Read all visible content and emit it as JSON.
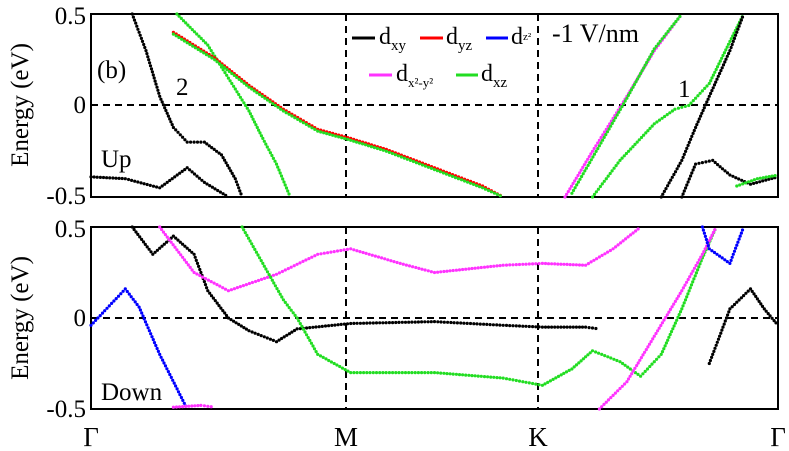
{
  "panel_label": "(b)",
  "field_label": "-1 V/nm",
  "colors": {
    "dxy": "#000000",
    "dyz": "#ff0000",
    "dz2": "#0000ff",
    "dx2y2": "#ff33ff",
    "dxz": "#22dd22",
    "zero_line": "#000000"
  },
  "legend": [
    {
      "key": "dxy",
      "base": "d",
      "sub": "xy"
    },
    {
      "key": "dyz",
      "base": "d",
      "sub": "yz"
    },
    {
      "key": "dz2",
      "base": "d",
      "sub": "z²"
    },
    {
      "key": "dx2y2",
      "base": "d",
      "sub": "x²-y²"
    },
    {
      "key": "dxz",
      "base": "d",
      "sub": "xz"
    }
  ],
  "chart_data": [
    {
      "type": "scatter",
      "panel": "Up",
      "ylabel": "Energy (eV)",
      "ylim": [
        -0.5,
        0.5
      ],
      "yticks": [
        "0.5",
        "0",
        "-0.5"
      ],
      "xlim": [
        0,
        1
      ],
      "kpoints": [
        "Γ",
        "M",
        "K",
        "Γ"
      ],
      "kpoint_positions": [
        0,
        0.378,
        0.657,
        1
      ],
      "annotations": [
        {
          "text": "2",
          "x": 0.14,
          "y": 0.08
        },
        {
          "text": "1",
          "x": 0.865,
          "y": 0.07
        }
      ],
      "series": [
        {
          "color": "dxy",
          "points": [
            [
              0.0,
              -0.39
            ],
            [
              0.05,
              -0.4
            ],
            [
              0.1,
              -0.45
            ],
            [
              0.14,
              -0.34
            ],
            [
              0.165,
              -0.42
            ],
            [
              0.2,
              -0.5
            ]
          ]
        },
        {
          "color": "dxz",
          "points": [
            [
              0.125,
              0.5
            ],
            [
              0.17,
              0.33
            ],
            [
              0.205,
              0.12
            ],
            [
              0.23,
              -0.03
            ],
            [
              0.25,
              -0.18
            ],
            [
              0.27,
              -0.32
            ],
            [
              0.29,
              -0.5
            ]
          ]
        },
        {
          "color": "dxy",
          "points": [
            [
              0.06,
              0.5
            ],
            [
              0.08,
              0.3
            ],
            [
              0.1,
              0.05
            ],
            [
              0.12,
              -0.12
            ],
            [
              0.14,
              -0.2
            ],
            [
              0.165,
              -0.2
            ],
            [
              0.19,
              -0.27
            ],
            [
              0.21,
              -0.4
            ],
            [
              0.22,
              -0.5
            ]
          ]
        },
        {
          "color": "dyz",
          "points": [
            [
              0.12,
              0.4
            ],
            [
              0.18,
              0.26
            ],
            [
              0.23,
              0.11
            ],
            [
              0.28,
              -0.02
            ],
            [
              0.33,
              -0.13
            ],
            [
              0.378,
              -0.18
            ],
            [
              0.43,
              -0.24
            ],
            [
              0.5,
              -0.34
            ],
            [
              0.57,
              -0.44
            ],
            [
              0.6,
              -0.5
            ]
          ]
        },
        {
          "color": "dxz",
          "points": [
            [
              0.12,
              0.39
            ],
            [
              0.18,
              0.25
            ],
            [
              0.23,
              0.1
            ],
            [
              0.28,
              -0.03
            ],
            [
              0.33,
              -0.14
            ],
            [
              0.378,
              -0.19
            ],
            [
              0.43,
              -0.25
            ],
            [
              0.5,
              -0.35
            ],
            [
              0.57,
              -0.45
            ],
            [
              0.6,
              -0.5
            ]
          ]
        },
        {
          "color": "dx2y2",
          "points": [
            [
              0.69,
              -0.5
            ],
            [
              0.73,
              -0.25
            ],
            [
              0.78,
              0.05
            ],
            [
              0.82,
              0.3
            ],
            [
              0.86,
              0.5
            ]
          ]
        },
        {
          "color": "dxz",
          "points": [
            [
              0.7,
              -0.48
            ],
            [
              0.74,
              -0.22
            ],
            [
              0.78,
              0.04
            ],
            [
              0.82,
              0.31
            ],
            [
              0.86,
              0.5
            ]
          ]
        },
        {
          "color": "dxz",
          "points": [
            [
              0.73,
              -0.5
            ],
            [
              0.77,
              -0.3
            ],
            [
              0.82,
              -0.1
            ],
            [
              0.85,
              -0.02
            ],
            [
              0.87,
              0.0
            ],
            [
              0.9,
              0.12
            ],
            [
              0.93,
              0.35
            ],
            [
              0.95,
              0.5
            ]
          ]
        },
        {
          "color": "dxy",
          "points": [
            [
              0.83,
              -0.5
            ],
            [
              0.86,
              -0.3
            ],
            [
              0.88,
              -0.12
            ],
            [
              0.9,
              0.05
            ],
            [
              0.93,
              0.3
            ],
            [
              0.95,
              0.5
            ]
          ]
        },
        {
          "color": "dxy",
          "points": [
            [
              0.86,
              -0.5
            ],
            [
              0.88,
              -0.32
            ],
            [
              0.905,
              -0.3
            ],
            [
              0.93,
              -0.38
            ],
            [
              0.96,
              -0.43
            ],
            [
              1.0,
              -0.39
            ]
          ]
        },
        {
          "color": "dxz",
          "points": [
            [
              0.94,
              -0.44
            ],
            [
              0.97,
              -0.4
            ],
            [
              1.0,
              -0.38
            ]
          ]
        }
      ]
    },
    {
      "type": "scatter",
      "panel": "Down",
      "ylabel": "Energy (eV)",
      "ylim": [
        -0.5,
        0.5
      ],
      "yticks": [
        "0.5",
        "0",
        "-0.5"
      ],
      "xlim": [
        0,
        1
      ],
      "kpoints": [
        "Γ",
        "M",
        "K",
        "Γ"
      ],
      "kpoint_positions": [
        0,
        0.378,
        0.657,
        1
      ],
      "series": [
        {
          "color": "dz2",
          "points": [
            [
              0.0,
              -0.04
            ],
            [
              0.03,
              0.08
            ],
            [
              0.05,
              0.16
            ],
            [
              0.07,
              0.06
            ],
            [
              0.1,
              -0.2
            ],
            [
              0.14,
              -0.5
            ]
          ]
        },
        {
          "color": "dxy",
          "points": [
            [
              0.06,
              0.5
            ],
            [
              0.09,
              0.35
            ],
            [
              0.12,
              0.45
            ],
            [
              0.15,
              0.35
            ],
            [
              0.17,
              0.15
            ],
            [
              0.2,
              0.0
            ],
            [
              0.23,
              -0.07
            ],
            [
              0.27,
              -0.13
            ],
            [
              0.3,
              -0.06
            ],
            [
              0.378,
              -0.03
            ],
            [
              0.5,
              -0.02
            ],
            [
              0.6,
              -0.04
            ],
            [
              0.657,
              -0.05
            ],
            [
              0.72,
              -0.05
            ],
            [
              0.74,
              -0.06
            ]
          ]
        },
        {
          "color": "dx2y2",
          "points": [
            [
              0.1,
              0.5
            ],
            [
              0.15,
              0.25
            ],
            [
              0.2,
              0.15
            ],
            [
              0.27,
              0.24
            ],
            [
              0.33,
              0.35
            ],
            [
              0.378,
              0.38
            ],
            [
              0.45,
              0.3
            ],
            [
              0.5,
              0.25
            ],
            [
              0.6,
              0.29
            ],
            [
              0.657,
              0.3
            ],
            [
              0.72,
              0.29
            ],
            [
              0.76,
              0.38
            ],
            [
              0.8,
              0.5
            ]
          ]
        },
        {
          "color": "dxz",
          "points": [
            [
              0.22,
              0.5
            ],
            [
              0.25,
              0.3
            ],
            [
              0.28,
              0.1
            ],
            [
              0.3,
              0.0
            ],
            [
              0.33,
              -0.2
            ],
            [
              0.378,
              -0.3
            ],
            [
              0.5,
              -0.3
            ],
            [
              0.6,
              -0.33
            ],
            [
              0.657,
              -0.37
            ],
            [
              0.7,
              -0.28
            ],
            [
              0.73,
              -0.18
            ],
            [
              0.77,
              -0.24
            ],
            [
              0.8,
              -0.32
            ],
            [
              0.83,
              -0.2
            ],
            [
              0.86,
              0.05
            ],
            [
              0.89,
              0.33
            ],
            [
              0.91,
              0.5
            ]
          ]
        },
        {
          "color": "dx2y2",
          "points": [
            [
              0.12,
              -0.49
            ],
            [
              0.16,
              -0.48
            ],
            [
              0.18,
              -0.49
            ]
          ]
        },
        {
          "color": "dx2y2",
          "points": [
            [
              0.74,
              -0.5
            ],
            [
              0.78,
              -0.35
            ],
            [
              0.82,
              -0.1
            ],
            [
              0.86,
              0.15
            ],
            [
              0.89,
              0.35
            ],
            [
              0.91,
              0.5
            ]
          ]
        },
        {
          "color": "dz2",
          "points": [
            [
              0.89,
              0.5
            ],
            [
              0.9,
              0.38
            ],
            [
              0.93,
              0.3
            ],
            [
              0.95,
              0.5
            ]
          ]
        },
        {
          "color": "dxy",
          "points": [
            [
              0.9,
              -0.25
            ],
            [
              0.93,
              0.05
            ],
            [
              0.96,
              0.16
            ],
            [
              0.98,
              0.05
            ],
            [
              1.0,
              -0.04
            ]
          ]
        }
      ]
    }
  ]
}
